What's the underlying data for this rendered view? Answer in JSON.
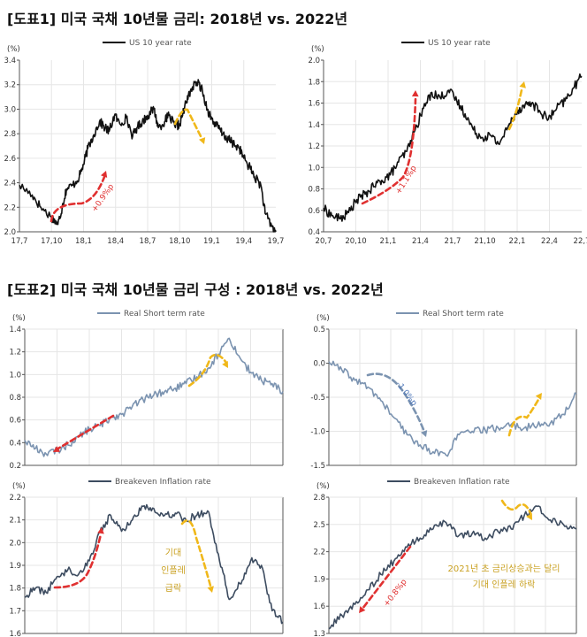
{
  "figure1": {
    "title": "[도표1] 미국 국채 10년물 금리: 2018년 vs. 2022년"
  },
  "figure2": {
    "title": "[도표2] 미국 국채 10년물 금리 구성 : 2018년 vs. 2022년"
  },
  "colors": {
    "us10y": "#111111",
    "real": "#7b93b0",
    "breakeven": "#3d4c60",
    "red_arrow": "#e03030",
    "gold_arrow": "#f0b81a",
    "grid": "#e6e6e6",
    "axis": "#555555"
  },
  "chart_data": [
    {
      "id": "us10y-2018",
      "type": "line",
      "unit": "(%)",
      "legend": "US 10 year rate",
      "color": "#111111",
      "x_ticks": [
        "17,7",
        "17,10",
        "18,1",
        "18,4",
        "18,7",
        "18,10",
        "19,1",
        "19,4",
        "19,7"
      ],
      "y_ticks": [
        "2.0",
        "2.2",
        "2.4",
        "2.6",
        "2.8",
        "3.0",
        "3.2",
        "3.4"
      ],
      "ylim": [
        2.0,
        3.4
      ],
      "grid": true,
      "series": [
        {
          "x": [
            0,
            1.2,
            2.0,
            3.0,
            3.6,
            4.0,
            4.4,
            5.0,
            5.6,
            6.0,
            6.4,
            6.9,
            7.5,
            8.0,
            8.4,
            8.9,
            9.4,
            10.0,
            10.6,
            11.0,
            11.5,
            12.0,
            12.6,
            13.0,
            13.6,
            14.0,
            14.6,
            15.0,
            15.6,
            16.0,
            16.6,
            17.0,
            17.6,
            18.0,
            18.6,
            19.0,
            19.6,
            20.0,
            20.6,
            21.0,
            21.6,
            22.0,
            22.6,
            23.0,
            23.6,
            24.0
          ],
          "values": [
            2.38,
            2.3,
            2.2,
            2.12,
            2.06,
            2.2,
            2.35,
            2.38,
            2.45,
            2.55,
            2.68,
            2.78,
            2.9,
            2.85,
            2.82,
            2.95,
            2.88,
            2.93,
            2.78,
            2.85,
            2.9,
            2.95,
            3.0,
            2.85,
            2.9,
            2.95,
            2.85,
            2.88,
            3.05,
            3.15,
            3.22,
            3.18,
            3.0,
            2.92,
            2.85,
            2.8,
            2.75,
            2.72,
            2.68,
            2.6,
            2.52,
            2.45,
            2.38,
            2.15,
            2.05,
            2.0
          ]
        }
      ],
      "annotations": [
        {
          "text": "+0.9%p",
          "color": "#e03030"
        }
      ]
    },
    {
      "id": "us10y-2022",
      "type": "line",
      "unit": "(%)",
      "legend": "US 10 year rate",
      "color": "#111111",
      "x_ticks": [
        "20,7",
        "20,10",
        "21,1",
        "21,4",
        "21,7",
        "21,10",
        "22,1",
        "22,4",
        "22,7"
      ],
      "y_ticks": [
        "0.4",
        "0.6",
        "0.8",
        "1.0",
        "1.2",
        "1.4",
        "1.6",
        "1.8",
        "2.0"
      ],
      "ylim": [
        0.4,
        2.0
      ],
      "grid": true,
      "series": [
        {
          "x": [
            0,
            0.6,
            1.2,
            1.8,
            2.4,
            3.0,
            3.6,
            4.2,
            4.8,
            5.4,
            6.0,
            6.6,
            7.2,
            7.8,
            8.4,
            9.0,
            9.6,
            10.2,
            10.8,
            11.4,
            12.0,
            12.6,
            13.2,
            13.8,
            14.4,
            15.0,
            15.6,
            16.2,
            16.8,
            17.4,
            18.0,
            18.6
          ],
          "values": [
            0.62,
            0.55,
            0.52,
            0.58,
            0.7,
            0.75,
            0.82,
            0.88,
            0.93,
            1.05,
            1.15,
            1.35,
            1.55,
            1.7,
            1.65,
            1.72,
            1.62,
            1.5,
            1.35,
            1.28,
            1.3,
            1.22,
            1.35,
            1.5,
            1.58,
            1.6,
            1.52,
            1.45,
            1.55,
            1.62,
            1.74,
            1.85
          ]
        }
      ],
      "annotations": [
        {
          "text": "+1.1%p",
          "color": "#e03030"
        }
      ]
    },
    {
      "id": "real-2018",
      "type": "line",
      "unit": "(%)",
      "legend": "Real Short term rate",
      "color": "#7b93b0",
      "y_ticks": [
        "0.2",
        "0.4",
        "0.6",
        "0.8",
        "1.0",
        "1.2",
        "1.4"
      ],
      "ylim": [
        0.2,
        1.4
      ],
      "grid": true,
      "series": [
        {
          "x": [
            0,
            1,
            2,
            3,
            4,
            5,
            6,
            7,
            8,
            9,
            10,
            11,
            12,
            13,
            14,
            15,
            16,
            17,
            18,
            19,
            20,
            21,
            22,
            23,
            24
          ],
          "values": [
            0.42,
            0.35,
            0.3,
            0.33,
            0.38,
            0.45,
            0.52,
            0.55,
            0.62,
            0.65,
            0.72,
            0.78,
            0.82,
            0.85,
            0.88,
            0.92,
            0.98,
            1.05,
            1.18,
            1.32,
            1.15,
            1.02,
            0.95,
            0.92,
            0.85
          ]
        }
      ],
      "annotations": []
    },
    {
      "id": "real-2022",
      "type": "line",
      "unit": "(%)",
      "legend": "Real Short term rate",
      "color": "#7b93b0",
      "y_ticks": [
        "-1.5",
        "-1.0",
        "-0.5",
        "0.0",
        "0.5"
      ],
      "ylim": [
        -1.5,
        0.5
      ],
      "grid": true,
      "series": [
        {
          "x": [
            0,
            1,
            2,
            3,
            4,
            5,
            6,
            7,
            8,
            9,
            10,
            11,
            12,
            13,
            14,
            15,
            16,
            17,
            18,
            19
          ],
          "values": [
            0.02,
            -0.1,
            -0.25,
            -0.35,
            -0.55,
            -0.8,
            -1.05,
            -1.2,
            -1.3,
            -1.35,
            -1.05,
            -1.0,
            -0.98,
            -0.95,
            -0.9,
            -0.95,
            -0.92,
            -0.88,
            -0.75,
            -0.45
          ]
        }
      ],
      "annotations": [
        {
          "text": "-1.0%p",
          "color": "#4a74b8"
        }
      ]
    },
    {
      "id": "bei-2018",
      "type": "line",
      "unit": "(%)",
      "legend": "Breakeven Inflation rate",
      "color": "#3d4c60",
      "y_ticks": [
        "1.6",
        "1.7",
        "1.8",
        "1.9",
        "2.0",
        "2.1",
        "2.2"
      ],
      "ylim": [
        1.6,
        2.2
      ],
      "grid": true,
      "series": [
        {
          "x": [
            0,
            1,
            2,
            3,
            4,
            5,
            6,
            7,
            8,
            9,
            10,
            11,
            12,
            13,
            14,
            15,
            16,
            17,
            18,
            19,
            20,
            21,
            22,
            23,
            24
          ],
          "values": [
            1.76,
            1.8,
            1.78,
            1.85,
            1.88,
            1.86,
            1.92,
            2.05,
            2.12,
            2.05,
            2.1,
            2.16,
            2.15,
            2.12,
            2.13,
            2.1,
            2.12,
            2.14,
            1.95,
            1.75,
            1.82,
            1.92,
            1.9,
            1.7,
            1.65
          ]
        }
      ],
      "annotations": [
        {
          "text": "기대 인플레 급락",
          "color": "#f0b81a"
        }
      ]
    },
    {
      "id": "bei-2022",
      "type": "line",
      "unit": "(%)",
      "legend": "Breakeven Inflation rate",
      "color": "#3d4c60",
      "y_ticks": [
        "1.3",
        "1.6",
        "1.9",
        "2.2",
        "2.5",
        "2.8"
      ],
      "ylim": [
        1.3,
        2.8
      ],
      "grid": true,
      "series": [
        {
          "x": [
            0,
            1,
            2,
            3,
            4,
            5,
            6,
            7,
            8,
            9,
            10,
            11,
            12,
            13,
            14,
            15,
            16,
            17,
            18,
            19
          ],
          "values": [
            1.35,
            1.5,
            1.62,
            1.78,
            1.95,
            2.1,
            2.25,
            2.35,
            2.45,
            2.52,
            2.38,
            2.4,
            2.35,
            2.42,
            2.45,
            2.6,
            2.7,
            2.55,
            2.5,
            2.45
          ]
        }
      ],
      "annotations": [
        {
          "text": "+0.8%p",
          "color": "#e03030"
        },
        {
          "text": "2021년 초 금리상승과는 달리 기대 인플레 하락",
          "color": "#f0b81a"
        }
      ]
    }
  ]
}
